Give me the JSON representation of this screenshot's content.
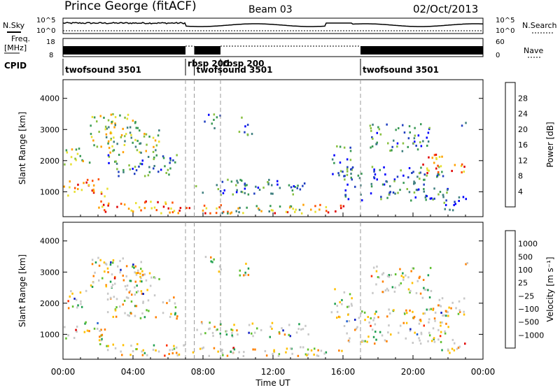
{
  "header": {
    "station": "Prince George (fitACF)",
    "beam": "Beam 03",
    "date": "02/Oct/2013"
  },
  "strip": {
    "nsky_label": "N.Sky",
    "nsearch_label": "N.Search",
    "freq_label": "Freq.",
    "freq_unit": "[MHz]",
    "nave_label": "Nave",
    "cpid_label": "CPID",
    "left_ticks_top": [
      "10^5",
      "10^0"
    ],
    "right_ticks_top": [
      "10^5",
      "10^0"
    ],
    "left_ticks_freq": [
      "18",
      "8"
    ],
    "right_ticks_nave": [
      "60",
      "0"
    ]
  },
  "cpid_segments": [
    {
      "name": "twofsound 3501",
      "start_h": 0.0
    },
    {
      "name": "rbsp 200",
      "start_h": 7.0
    },
    {
      "name": "twofsound 3501",
      "start_h": 7.5
    },
    {
      "name": "rbsp 200",
      "start_h": 9.0
    },
    {
      "name": "twofsound 3501",
      "start_h": 17.0
    }
  ],
  "chart_data": [
    {
      "type": "heatmap",
      "name": "power",
      "ylabel": "Slant Range [km]",
      "xlabel": "Time UT",
      "ylim": [
        200,
        4600
      ],
      "x_ticks": [
        "00:00",
        "04:00",
        "08:00",
        "12:00",
        "16:00",
        "20:00",
        "00:00"
      ],
      "y_ticks": [
        1000,
        2000,
        3000,
        4000
      ],
      "colorbar": {
        "label": "Power [dB]",
        "ticks": [
          "4",
          "8",
          "12",
          "16",
          "20",
          "24",
          "28"
        ],
        "colors": [
          "#0000ff",
          "#2040c0",
          "#408080",
          "#3a9a55",
          "#88c040",
          "#e8e030",
          "#ffa000",
          "#ff5000",
          "#e00000"
        ]
      }
    },
    {
      "type": "heatmap",
      "name": "velocity",
      "ylabel": "Slant Range [km]",
      "xlabel": "Time UT",
      "ylim": [
        200,
        4600
      ],
      "x_ticks": [
        "00:00",
        "04:00",
        "08:00",
        "12:00",
        "16:00",
        "20:00",
        "00:00"
      ],
      "y_ticks": [
        1000,
        2000,
        3000,
        4000
      ],
      "colorbar": {
        "label": "Velocity [m s⁻¹]",
        "ticks": [
          "1000",
          "500",
          "100",
          "25",
          "−25",
          "−100",
          "−500",
          "−1000"
        ],
        "colors": [
          "#1020c0",
          "#2060d0",
          "#20a050",
          "#60c030",
          "#c8c8c8",
          "#c8c8c8",
          "#ffc000",
          "#ff8000",
          "#ff3000",
          "#e00000"
        ]
      }
    }
  ]
}
